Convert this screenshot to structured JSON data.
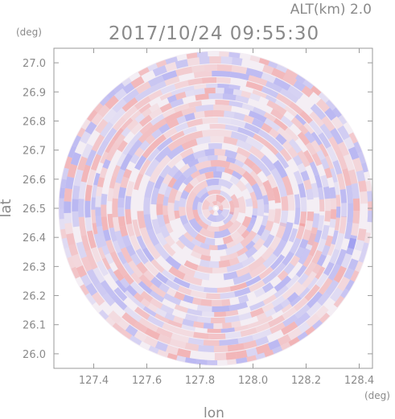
{
  "header": {
    "altitude_label": "ALT(km) 2.0",
    "timestamp": "2017/10/24 09:55:30"
  },
  "chart_data": {
    "type": "heatmap",
    "title": "2017/10/24 09:55:30",
    "subtitle": "ALT(km) 2.0",
    "xlabel": "lon",
    "ylabel": "lat",
    "x_unit": "(deg)",
    "y_unit": "(deg)",
    "xlim": [
      127.25,
      128.45
    ],
    "ylim": [
      25.95,
      27.05
    ],
    "x_ticks": [
      "127.4",
      "127.6",
      "127.8",
      "128.0",
      "128.2",
      "128.4"
    ],
    "y_ticks": [
      "26.0",
      "26.1",
      "26.2",
      "26.3",
      "26.4",
      "26.5",
      "26.6",
      "26.7",
      "26.8",
      "26.9",
      "27.0"
    ],
    "center": {
      "lon": 127.86,
      "lat": 26.5
    },
    "range_radius_deg": 0.5,
    "grid": false,
    "colors": {
      "positive": "#f08888",
      "negative": "#8c8cf0",
      "frame": "#999999",
      "text": "#8a8a8a"
    }
  }
}
